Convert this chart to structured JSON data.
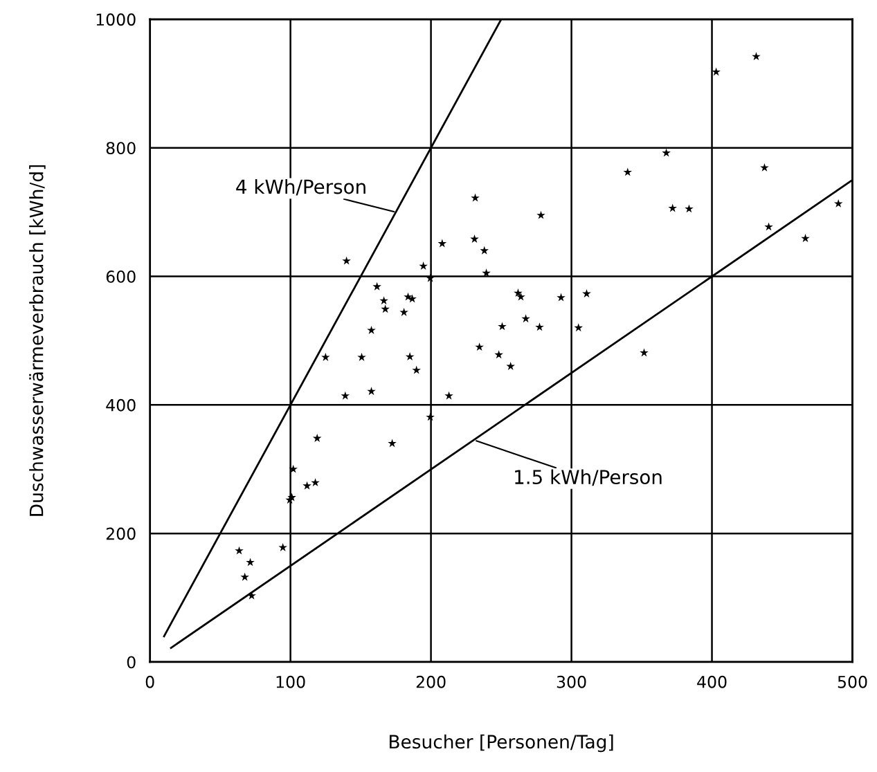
{
  "chart_data": {
    "type": "scatter",
    "xlabel": "Besucher [Personen/Tag]",
    "ylabel": "Duschwasserwärmeverbrauch [kWh/d]",
    "xlim": [
      0,
      500
    ],
    "ylim": [
      0,
      1000
    ],
    "xticks": [
      0,
      100,
      200,
      300,
      400,
      500
    ],
    "yticks": [
      0,
      200,
      400,
      600,
      800,
      1000
    ],
    "grid": true,
    "marker": "star",
    "series": [
      {
        "color": "#000000",
        "x": [
          63.5,
          67.5,
          71.4,
          72.4,
          94.6,
          99.5,
          101,
          102,
          111.8,
          117.7,
          119,
          125,
          139,
          139.9,
          150.7,
          157.6,
          157.6,
          161.6,
          166.5,
          167.5,
          172.4,
          180.8,
          183.7,
          185,
          186.7,
          189.7,
          194.6,
          199.5,
          199.5,
          208,
          212.8,
          231,
          231.5,
          234.5,
          238,
          239.4,
          248.3,
          250.7,
          256.7,
          262,
          264,
          267.5,
          277.3,
          278.3,
          292.6,
          305,
          310.8,
          340,
          351.7,
          367.5,
          372,
          383.7,
          403,
          431.5,
          437.4,
          440.4,
          466.5,
          490
        ],
        "values": [
          173,
          132,
          155,
          103,
          178,
          252,
          256,
          300,
          274,
          279,
          348,
          474,
          414,
          624,
          474,
          421,
          516,
          584,
          562,
          549,
          340,
          544,
          568,
          475,
          565,
          454,
          616,
          597,
          381,
          651,
          414,
          658,
          722,
          490,
          640,
          605,
          478,
          522,
          460,
          574,
          568,
          534,
          521,
          695,
          567,
          520,
          573,
          762,
          481,
          792,
          706,
          705,
          918,
          942,
          769,
          677,
          659,
          713
        ]
      },
      {
        "type": "line",
        "color": "#000000",
        "marker": "none",
        "x": [
          10,
          250
        ],
        "values": [
          40,
          1000
        ]
      },
      {
        "type": "line",
        "color": "#000000",
        "marker": "none",
        "x": [
          15,
          500
        ],
        "values": [
          22,
          750
        ]
      }
    ],
    "annotations": [
      {
        "text": "4 kWh/Person",
        "x": 175,
        "y": 700
      },
      {
        "text": "1.5 kWh/Person",
        "x": 231,
        "y": 345
      }
    ]
  }
}
